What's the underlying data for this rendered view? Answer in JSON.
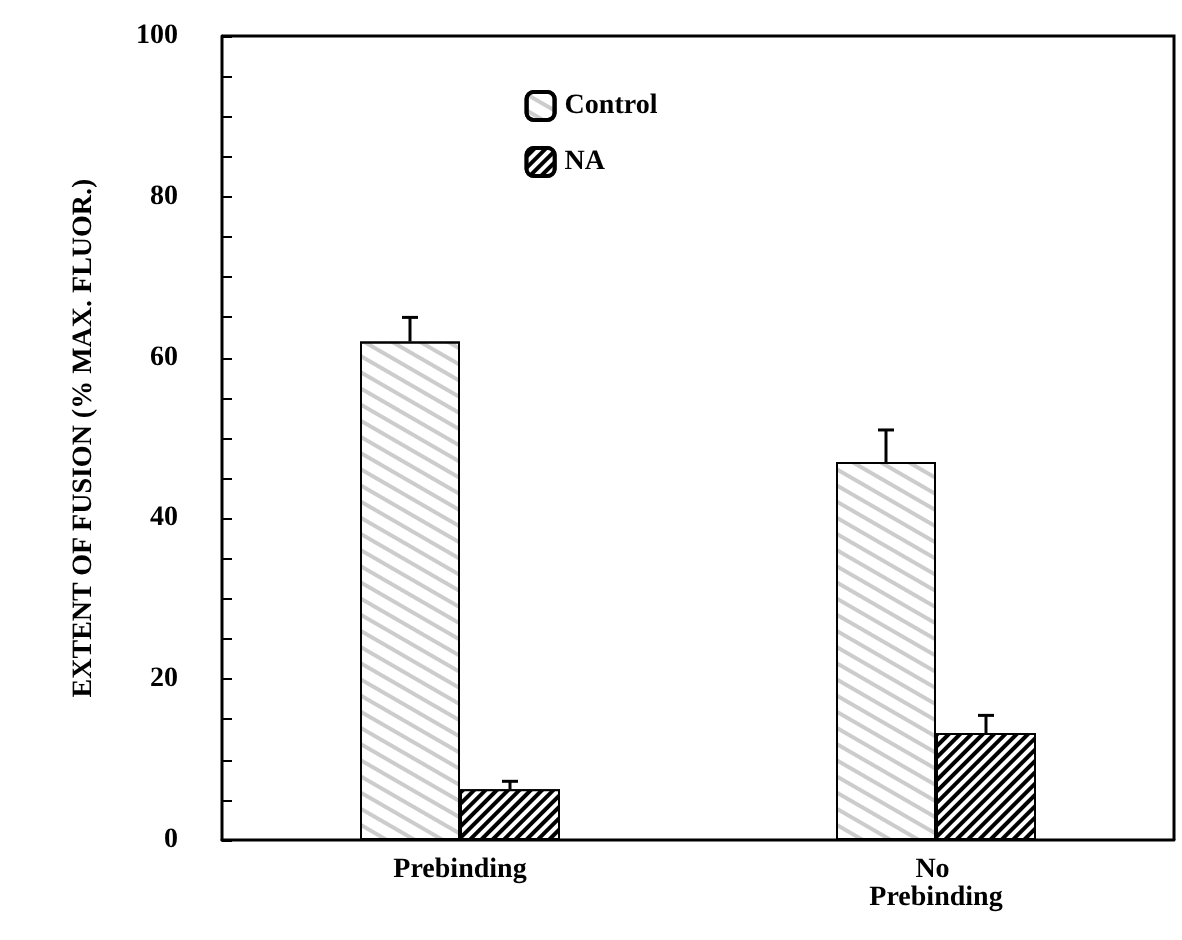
{
  "chart_data": {
    "type": "bar",
    "ylabel": "EXTENT OF FUSION (% MAX. FLUOR.)",
    "categories": [
      "Prebinding",
      "No Prebinding"
    ],
    "series": [
      {
        "name": "Control",
        "color": "#ffffff",
        "values": [
          62,
          47
        ],
        "errors": [
          3,
          4
        ]
      },
      {
        "name": "NA",
        "color": "#000000",
        "values": [
          6.3,
          13.3
        ],
        "errors": [
          1,
          2.2
        ]
      }
    ],
    "ylim": [
      0,
      100
    ],
    "yticks": [
      0,
      {
        "value": 5,
        "label": null
      },
      {
        "value": 10,
        "label": null
      },
      {
        "value": 15,
        "label": null
      },
      20,
      {
        "value": 25,
        "label": null
      },
      {
        "value": 30,
        "label": null
      },
      {
        "value": 35,
        "label": null
      },
      40,
      {
        "value": 45,
        "label": null
      },
      {
        "value": 50,
        "label": null
      },
      {
        "value": 55,
        "label": null
      },
      60,
      {
        "value": 65,
        "label": null
      },
      {
        "value": 70,
        "label": null
      },
      {
        "value": 75,
        "label": null
      },
      80,
      {
        "value": 85,
        "label": null
      },
      {
        "value": 90,
        "label": null
      },
      {
        "value": 95,
        "label": null
      },
      100
    ],
    "grid": false,
    "legend": "top"
  }
}
